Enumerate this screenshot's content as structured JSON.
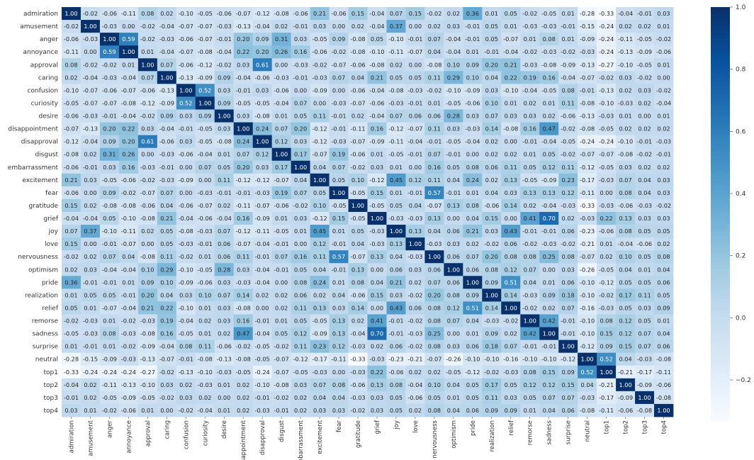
{
  "chart_data": {
    "type": "heatmap",
    "title": "",
    "xlabel": "",
    "ylabel": "",
    "labels": [
      "admiration",
      "amusement",
      "anger",
      "annoyance",
      "approval",
      "caring",
      "confusion",
      "curiosity",
      "desire",
      "disappointment",
      "disapproval",
      "disgust",
      "embarrassment",
      "excitement",
      "fear",
      "gratitude",
      "grief",
      "joy",
      "love",
      "nervousness",
      "optimism",
      "pride",
      "realization",
      "relief",
      "remorse",
      "sadness",
      "surprise",
      "neutral",
      "top1",
      "top2",
      "top3",
      "top4"
    ],
    "col_labels_display": [
      "admiration",
      "amusement",
      "anger",
      "annoyance",
      "approval",
      "caring",
      "confusion",
      "curiosity",
      "desire",
      "sappointment",
      "disapproval",
      "disgust",
      "nbarrassment",
      "excitement",
      "fear",
      "gratitude",
      "grief",
      "joy",
      "love",
      "nervousness",
      "optimism",
      "pride",
      "realization",
      "relief",
      "remorse",
      "sadness",
      "surprise",
      "neutral",
      "top1",
      "top2",
      "top3",
      "top4"
    ],
    "values": [
      [
        1.0,
        -0.02,
        -0.06,
        -0.11,
        0.08,
        0.02,
        -0.1,
        -0.05,
        -0.06,
        -0.07,
        -0.12,
        -0.08,
        -0.06,
        0.21,
        -0.06,
        0.15,
        -0.04,
        0.07,
        0.15,
        -0.02,
        0.02,
        0.36,
        0.01,
        0.05,
        -0.02,
        -0.05,
        0.01,
        -0.28,
        -0.33,
        -0.04,
        -0.01,
        0.03
      ],
      [
        -0.02,
        1.0,
        -0.03,
        0.0,
        -0.02,
        -0.04,
        -0.07,
        -0.07,
        -0.03,
        -0.13,
        -0.04,
        0.02,
        -0.01,
        0.03,
        0.0,
        0.02,
        -0.04,
        0.37,
        0.0,
        0.02,
        0.03,
        -0.01,
        0.05,
        0.01,
        -0.03,
        -0.03,
        -0.01,
        -0.15,
        -0.24,
        0.02,
        0.02,
        0.01
      ],
      [
        -0.06,
        -0.03,
        1.0,
        0.59,
        -0.02,
        -0.03,
        -0.06,
        -0.07,
        -0.01,
        0.2,
        0.09,
        0.31,
        0.03,
        -0.05,
        0.09,
        -0.08,
        0.05,
        -0.1,
        -0.01,
        0.07,
        -0.04,
        -0.01,
        0.05,
        -0.07,
        0.01,
        0.08,
        0.01,
        -0.09,
        -0.24,
        -0.11,
        -0.05,
        -0.02
      ],
      [
        -0.11,
        0.0,
        0.59,
        1.0,
        0.01,
        -0.04,
        -0.07,
        -0.08,
        -0.04,
        0.22,
        0.2,
        0.26,
        0.16,
        -0.06,
        -0.02,
        -0.08,
        -0.1,
        -0.11,
        -0.07,
        0.04,
        -0.04,
        0.01,
        -0.01,
        -0.04,
        -0.02,
        -0.03,
        -0.02,
        -0.03,
        -0.24,
        -0.13,
        -0.09,
        -0.06
      ],
      [
        0.08,
        -0.02,
        -0.02,
        0.01,
        1.0,
        0.07,
        -0.06,
        -0.12,
        -0.02,
        0.03,
        0.61,
        0.0,
        -0.03,
        -0.02,
        -0.07,
        -0.06,
        -0.08,
        0.02,
        0.0,
        -0.08,
        0.1,
        0.09,
        0.2,
        0.21,
        -0.03,
        -0.08,
        -0.09,
        -0.13,
        -0.27,
        -0.1,
        -0.05,
        0.01
      ],
      [
        0.02,
        -0.04,
        -0.03,
        -0.04,
        0.07,
        1.0,
        -0.13,
        -0.09,
        0.09,
        -0.04,
        -0.06,
        -0.03,
        -0.01,
        -0.03,
        0.07,
        0.04,
        0.21,
        0.05,
        0.05,
        0.11,
        0.29,
        0.1,
        0.04,
        0.22,
        0.19,
        0.16,
        -0.04,
        -0.07,
        -0.02,
        0.03,
        -0.02,
        0.0
      ],
      [
        -0.1,
        -0.07,
        -0.06,
        -0.07,
        -0.06,
        -0.13,
        1.0,
        0.52,
        0.03,
        -0.01,
        0.03,
        -0.06,
        0.0,
        -0.09,
        -0.0,
        -0.06,
        -0.04,
        -0.08,
        -0.03,
        -0.02,
        -0.1,
        -0.09,
        0.03,
        -0.1,
        -0.04,
        -0.05,
        0.08,
        -0.01,
        -0.13,
        0.02,
        0.03,
        -0.02
      ],
      [
        -0.05,
        -0.07,
        -0.07,
        -0.08,
        -0.12,
        -0.09,
        0.52,
        1.0,
        0.09,
        -0.05,
        -0.05,
        -0.04,
        0.07,
        0.0,
        -0.03,
        -0.07,
        -0.06,
        -0.03,
        -0.01,
        0.01,
        -0.05,
        -0.06,
        0.1,
        0.01,
        0.02,
        0.01,
        0.11,
        -0.08,
        -0.1,
        -0.03,
        0.02,
        -0.04
      ],
      [
        -0.06,
        -0.03,
        -0.01,
        -0.04,
        -0.02,
        0.09,
        0.03,
        0.09,
        1.0,
        0.03,
        -0.08,
        0.01,
        0.05,
        0.11,
        -0.01,
        0.02,
        -0.04,
        0.07,
        0.06,
        0.06,
        0.28,
        0.03,
        0.07,
        0.03,
        0.03,
        0.02,
        -0.06,
        -0.13,
        -0.03,
        0.01,
        0.0,
        0.01
      ],
      [
        -0.07,
        -0.13,
        0.2,
        0.22,
        0.03,
        -0.04,
        -0.01,
        -0.05,
        0.03,
        1.0,
        0.24,
        0.07,
        0.2,
        -0.12,
        -0.01,
        -0.11,
        0.16,
        -0.12,
        -0.07,
        0.11,
        0.03,
        -0.03,
        0.14,
        -0.08,
        0.16,
        0.47,
        -0.02,
        -0.08,
        -0.05,
        0.02,
        0.02,
        0.02
      ],
      [
        -0.12,
        -0.04,
        0.09,
        0.2,
        0.61,
        -0.06,
        0.03,
        -0.05,
        -0.08,
        0.24,
        1.0,
        0.12,
        0.03,
        -0.12,
        -0.03,
        -0.07,
        -0.09,
        -0.11,
        -0.04,
        -0.01,
        -0.05,
        -0.04,
        0.02,
        0.0,
        -0.01,
        -0.04,
        -0.05,
        -0.24,
        -0.24,
        -0.1,
        -0.01,
        -0.03
      ],
      [
        -0.08,
        0.02,
        0.31,
        0.26,
        -0.0,
        -0.03,
        -0.06,
        -0.04,
        0.01,
        0.07,
        0.12,
        1.0,
        0.17,
        -0.07,
        0.19,
        -0.06,
        0.01,
        -0.05,
        -0.01,
        0.07,
        -0.01,
        0.0,
        0.02,
        0.02,
        0.01,
        0.05,
        -0.02,
        -0.07,
        -0.07,
        -0.08,
        -0.02,
        -0.01
      ],
      [
        -0.06,
        -0.01,
        0.03,
        0.16,
        -0.03,
        -0.01,
        0.0,
        0.07,
        0.05,
        0.2,
        0.03,
        0.17,
        1.0,
        0.04,
        0.07,
        -0.02,
        0.03,
        0.01,
        0.0,
        0.16,
        0.05,
        0.08,
        0.06,
        0.11,
        0.05,
        0.12,
        0.11,
        -0.12,
        -0.05,
        0.03,
        0.02,
        0.02
      ],
      [
        0.21,
        0.03,
        -0.05,
        -0.06,
        -0.02,
        -0.03,
        -0.09,
        0.0,
        0.11,
        -0.12,
        -0.12,
        -0.07,
        0.04,
        1.0,
        0.05,
        0.1,
        -0.12,
        0.45,
        0.12,
        0.11,
        0.04,
        0.24,
        0.02,
        0.13,
        -0.05,
        -0.09,
        0.23,
        -0.17,
        -0.03,
        0.07,
        0.04,
        0.03
      ],
      [
        -0.06,
        -0.0,
        0.09,
        -0.02,
        -0.07,
        0.07,
        -0.0,
        -0.03,
        -0.01,
        -0.01,
        -0.03,
        0.19,
        0.07,
        0.05,
        1.0,
        -0.05,
        0.15,
        0.01,
        -0.01,
        0.57,
        -0.01,
        0.01,
        0.04,
        0.03,
        0.13,
        0.13,
        0.12,
        -0.11,
        0.0,
        0.08,
        0.04,
        0.03
      ],
      [
        0.15,
        0.02,
        -0.08,
        -0.08,
        -0.06,
        0.04,
        -0.06,
        -0.07,
        0.02,
        -0.11,
        -0.07,
        -0.06,
        -0.02,
        0.1,
        -0.05,
        1.0,
        -0.05,
        0.05,
        0.04,
        -0.07,
        0.13,
        0.08,
        -0.06,
        0.14,
        0.02,
        -0.04,
        -0.03,
        -0.33,
        -0.03,
        -0.06,
        -0.03,
        -0.02
      ],
      [
        -0.04,
        -0.04,
        0.05,
        -0.1,
        -0.08,
        0.21,
        -0.04,
        -0.06,
        -0.04,
        0.16,
        -0.09,
        0.01,
        0.03,
        -0.12,
        0.15,
        -0.05,
        1.0,
        -0.03,
        -0.03,
        0.13,
        0.0,
        0.04,
        0.15,
        0.0,
        0.41,
        0.7,
        0.02,
        -0.03,
        0.22,
        0.13,
        0.03,
        0.03
      ],
      [
        0.07,
        0.37,
        -0.1,
        -0.11,
        0.02,
        0.05,
        -0.08,
        -0.03,
        0.07,
        -0.12,
        -0.11,
        -0.05,
        0.01,
        0.45,
        0.01,
        0.05,
        -0.03,
        1.0,
        0.13,
        0.04,
        0.06,
        0.21,
        0.03,
        0.43,
        -0.01,
        -0.01,
        0.06,
        -0.23,
        -0.06,
        0.08,
        0.05,
        0.05
      ],
      [
        0.15,
        0.0,
        -0.01,
        -0.07,
        0.0,
        0.05,
        -0.03,
        -0.01,
        0.06,
        -0.07,
        -0.04,
        -0.01,
        0.0,
        0.12,
        -0.01,
        0.04,
        -0.03,
        0.13,
        1.0,
        -0.03,
        0.03,
        0.02,
        -0.02,
        0.06,
        -0.02,
        -0.03,
        -0.02,
        -0.21,
        0.01,
        -0.04,
        -0.06,
        0.02
      ],
      [
        -0.02,
        0.02,
        0.07,
        0.04,
        -0.08,
        0.11,
        -0.02,
        0.01,
        0.06,
        0.11,
        -0.01,
        0.07,
        0.16,
        0.11,
        0.57,
        -0.07,
        0.13,
        0.04,
        -0.03,
        1.0,
        0.06,
        0.07,
        0.2,
        0.08,
        0.08,
        0.25,
        0.08,
        -0.07,
        0.02,
        0.1,
        0.05,
        0.08
      ],
      [
        0.02,
        0.03,
        -0.04,
        -0.04,
        0.1,
        0.29,
        -0.1,
        -0.05,
        0.28,
        0.03,
        -0.04,
        -0.01,
        0.05,
        0.04,
        -0.01,
        0.13,
        0.0,
        0.06,
        0.03,
        0.06,
        1.0,
        0.06,
        0.08,
        0.12,
        0.07,
        0.0,
        0.03,
        -0.26,
        -0.05,
        0.04,
        0.01,
        0.04
      ],
      [
        0.36,
        -0.01,
        -0.01,
        0.01,
        0.09,
        0.1,
        -0.09,
        -0.06,
        0.03,
        -0.03,
        -0.04,
        0.0,
        0.08,
        0.24,
        0.01,
        0.08,
        0.04,
        0.21,
        0.02,
        0.07,
        0.06,
        1.0,
        0.09,
        0.51,
        0.04,
        0.01,
        0.06,
        -0.1,
        -0.12,
        0.05,
        0.05,
        0.06
      ],
      [
        0.01,
        0.05,
        0.05,
        -0.01,
        0.2,
        0.04,
        0.03,
        0.1,
        0.07,
        0.14,
        0.02,
        0.02,
        0.06,
        0.02,
        0.04,
        -0.06,
        0.15,
        0.03,
        -0.02,
        0.2,
        0.08,
        0.09,
        1.0,
        0.14,
        -0.03,
        0.09,
        0.18,
        -0.1,
        -0.02,
        0.17,
        0.11,
        0.05
      ],
      [
        0.05,
        0.01,
        -0.07,
        -0.04,
        0.21,
        0.22,
        -0.1,
        0.01,
        0.03,
        -0.08,
        0.0,
        0.02,
        0.11,
        0.13,
        0.03,
        0.14,
        0.0,
        0.43,
        0.06,
        0.08,
        0.12,
        0.51,
        0.14,
        1.0,
        -0.02,
        0.02,
        0.07,
        -0.16,
        -0.03,
        0.05,
        0.03,
        0.09
      ],
      [
        -0.02,
        -0.03,
        0.01,
        -0.02,
        -0.03,
        0.19,
        -0.04,
        0.02,
        0.03,
        0.16,
        -0.01,
        0.01,
        0.05,
        -0.05,
        0.13,
        0.02,
        0.41,
        -0.01,
        -0.02,
        0.08,
        0.07,
        0.04,
        -0.03,
        -0.02,
        1.0,
        0.42,
        -0.01,
        -0.1,
        0.08,
        0.12,
        0.05,
        0.01
      ],
      [
        -0.05,
        -0.03,
        0.08,
        -0.03,
        -0.08,
        0.16,
        -0.05,
        0.01,
        0.02,
        0.47,
        -0.04,
        0.05,
        0.12,
        -0.09,
        0.13,
        -0.04,
        0.7,
        -0.01,
        -0.03,
        0.25,
        0.0,
        0.01,
        0.09,
        0.02,
        0.42,
        1.0,
        -0.01,
        -0.1,
        0.15,
        0.12,
        0.07,
        0.04
      ],
      [
        0.01,
        -0.01,
        0.01,
        -0.02,
        -0.09,
        -0.04,
        0.08,
        0.11,
        -0.06,
        -0.02,
        -0.05,
        -0.02,
        0.11,
        0.23,
        0.12,
        -0.03,
        0.02,
        0.06,
        -0.02,
        0.08,
        0.03,
        0.06,
        0.18,
        0.07,
        -0.01,
        -0.01,
        1.0,
        -0.12,
        0.09,
        0.15,
        0.07,
        0.06
      ],
      [
        -0.28,
        -0.15,
        -0.09,
        -0.03,
        -0.13,
        -0.07,
        -0.01,
        -0.08,
        -0.13,
        -0.08,
        -0.05,
        -0.07,
        -0.12,
        -0.17,
        -0.11,
        -0.33,
        -0.03,
        -0.23,
        -0.21,
        -0.07,
        -0.26,
        -0.1,
        -0.1,
        -0.16,
        -0.1,
        -0.1,
        -0.12,
        1.0,
        0.52,
        0.04,
        -0.03,
        -0.08
      ],
      [
        -0.33,
        -0.24,
        -0.24,
        -0.24,
        -0.27,
        -0.02,
        -0.13,
        -0.1,
        -0.03,
        -0.05,
        -0.24,
        -0.07,
        -0.05,
        -0.03,
        0.0,
        -0.03,
        0.22,
        -0.06,
        0.02,
        0.02,
        -0.05,
        -0.12,
        -0.02,
        -0.03,
        0.08,
        0.15,
        0.09,
        0.52,
        1.0,
        -0.21,
        -0.17,
        -0.11
      ],
      [
        -0.04,
        0.02,
        -0.11,
        -0.13,
        -0.1,
        0.03,
        0.02,
        -0.03,
        0.01,
        0.02,
        -0.1,
        -0.08,
        0.03,
        0.07,
        0.08,
        -0.06,
        0.13,
        0.08,
        -0.04,
        0.1,
        0.04,
        0.05,
        0.17,
        0.05,
        0.12,
        0.12,
        0.15,
        0.04,
        -0.21,
        1.0,
        -0.09,
        -0.06
      ],
      [
        -0.01,
        0.02,
        -0.05,
        -0.09,
        -0.05,
        -0.02,
        0.03,
        0.02,
        0.0,
        0.02,
        -0.01,
        -0.02,
        0.02,
        0.04,
        0.04,
        -0.03,
        0.03,
        0.05,
        -0.06,
        0.05,
        0.01,
        0.05,
        0.11,
        0.03,
        0.05,
        0.07,
        0.07,
        -0.03,
        -0.17,
        -0.09,
        1.0,
        -0.08
      ],
      [
        0.03,
        0.01,
        -0.02,
        -0.06,
        0.01,
        0.0,
        -0.02,
        -0.04,
        0.01,
        0.02,
        -0.03,
        -0.01,
        0.02,
        0.03,
        0.03,
        -0.02,
        0.03,
        0.05,
        0.02,
        0.08,
        0.04,
        0.06,
        0.09,
        0.09,
        0.01,
        0.04,
        0.06,
        -0.08,
        -0.11,
        -0.06,
        -0.08,
        1.0
      ]
    ],
    "colorbar": {
      "colormap": "Blues",
      "vmin": -0.33,
      "vmax": 1.0,
      "ticks": [
        1.0,
        0.8,
        0.6,
        0.4,
        0.2,
        0.0,
        -0.2
      ],
      "tick_labels": [
        "1.0",
        "0.8",
        "0.6",
        "0.4",
        "0.2",
        "0.0",
        "−0.2"
      ]
    },
    "grid": false,
    "legend": "colorbar right"
  }
}
